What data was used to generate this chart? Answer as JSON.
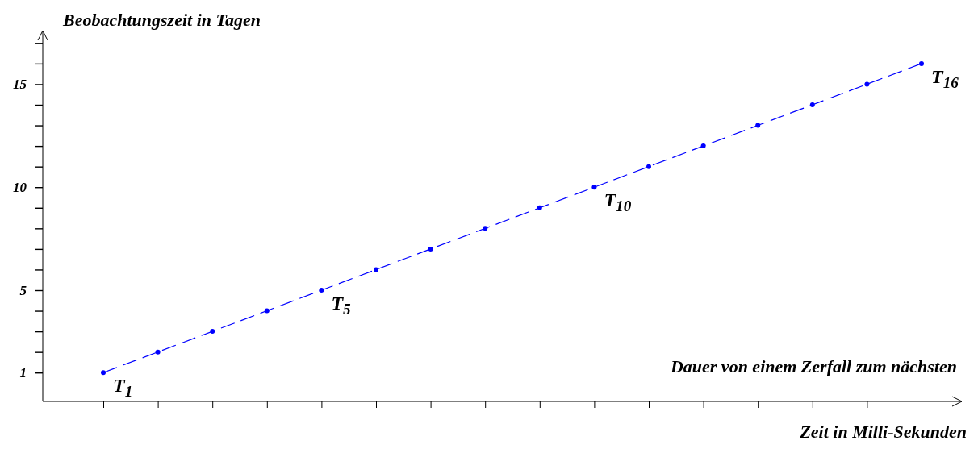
{
  "chart_data": {
    "type": "line",
    "xlabel": "Zeit in Milli-Sekunden",
    "ylabel": "Beobachtungszeit in Tagen",
    "categories": [
      null,
      null,
      null,
      null,
      null,
      null,
      null,
      null,
      null,
      null,
      null,
      null,
      null,
      null,
      null,
      null
    ],
    "series": [
      {
        "color": "#0000ff",
        "values": [
          1,
          2,
          3,
          4,
          5,
          6,
          7,
          8,
          9,
          10,
          11,
          12,
          13,
          14,
          15,
          16
        ],
        "value_labels": [
          "T$_{1}$",
          null,
          null,
          null,
          "T$_{5}$",
          null,
          null,
          null,
          null,
          "T$_{10}$",
          null,
          null,
          null,
          null,
          null,
          "T$_{16}$"
        ]
      }
    ],
    "marker": "circle",
    "line_style": "dashed",
    "grid": false,
    "ylim": [
      -0.4,
      17.6
    ],
    "yticks": [
      1,
      {
        "value": 2,
        "label": null
      },
      {
        "value": 3,
        "label": null
      },
      {
        "value": 4,
        "label": null
      },
      5,
      {
        "value": 6,
        "label": null
      },
      {
        "value": 7,
        "label": null
      },
      {
        "value": 8,
        "label": null
      },
      {
        "value": 9,
        "label": null
      },
      10,
      {
        "value": 11,
        "label": null
      },
      {
        "value": 12,
        "label": null
      },
      {
        "value": 13,
        "label": null
      },
      {
        "value": 14,
        "label": null
      },
      15,
      {
        "value": 16,
        "label": null
      },
      {
        "value": 17,
        "label": null
      }
    ],
    "annotations": [
      "Dauer von einem Zerfall zum nächsten"
    ]
  }
}
